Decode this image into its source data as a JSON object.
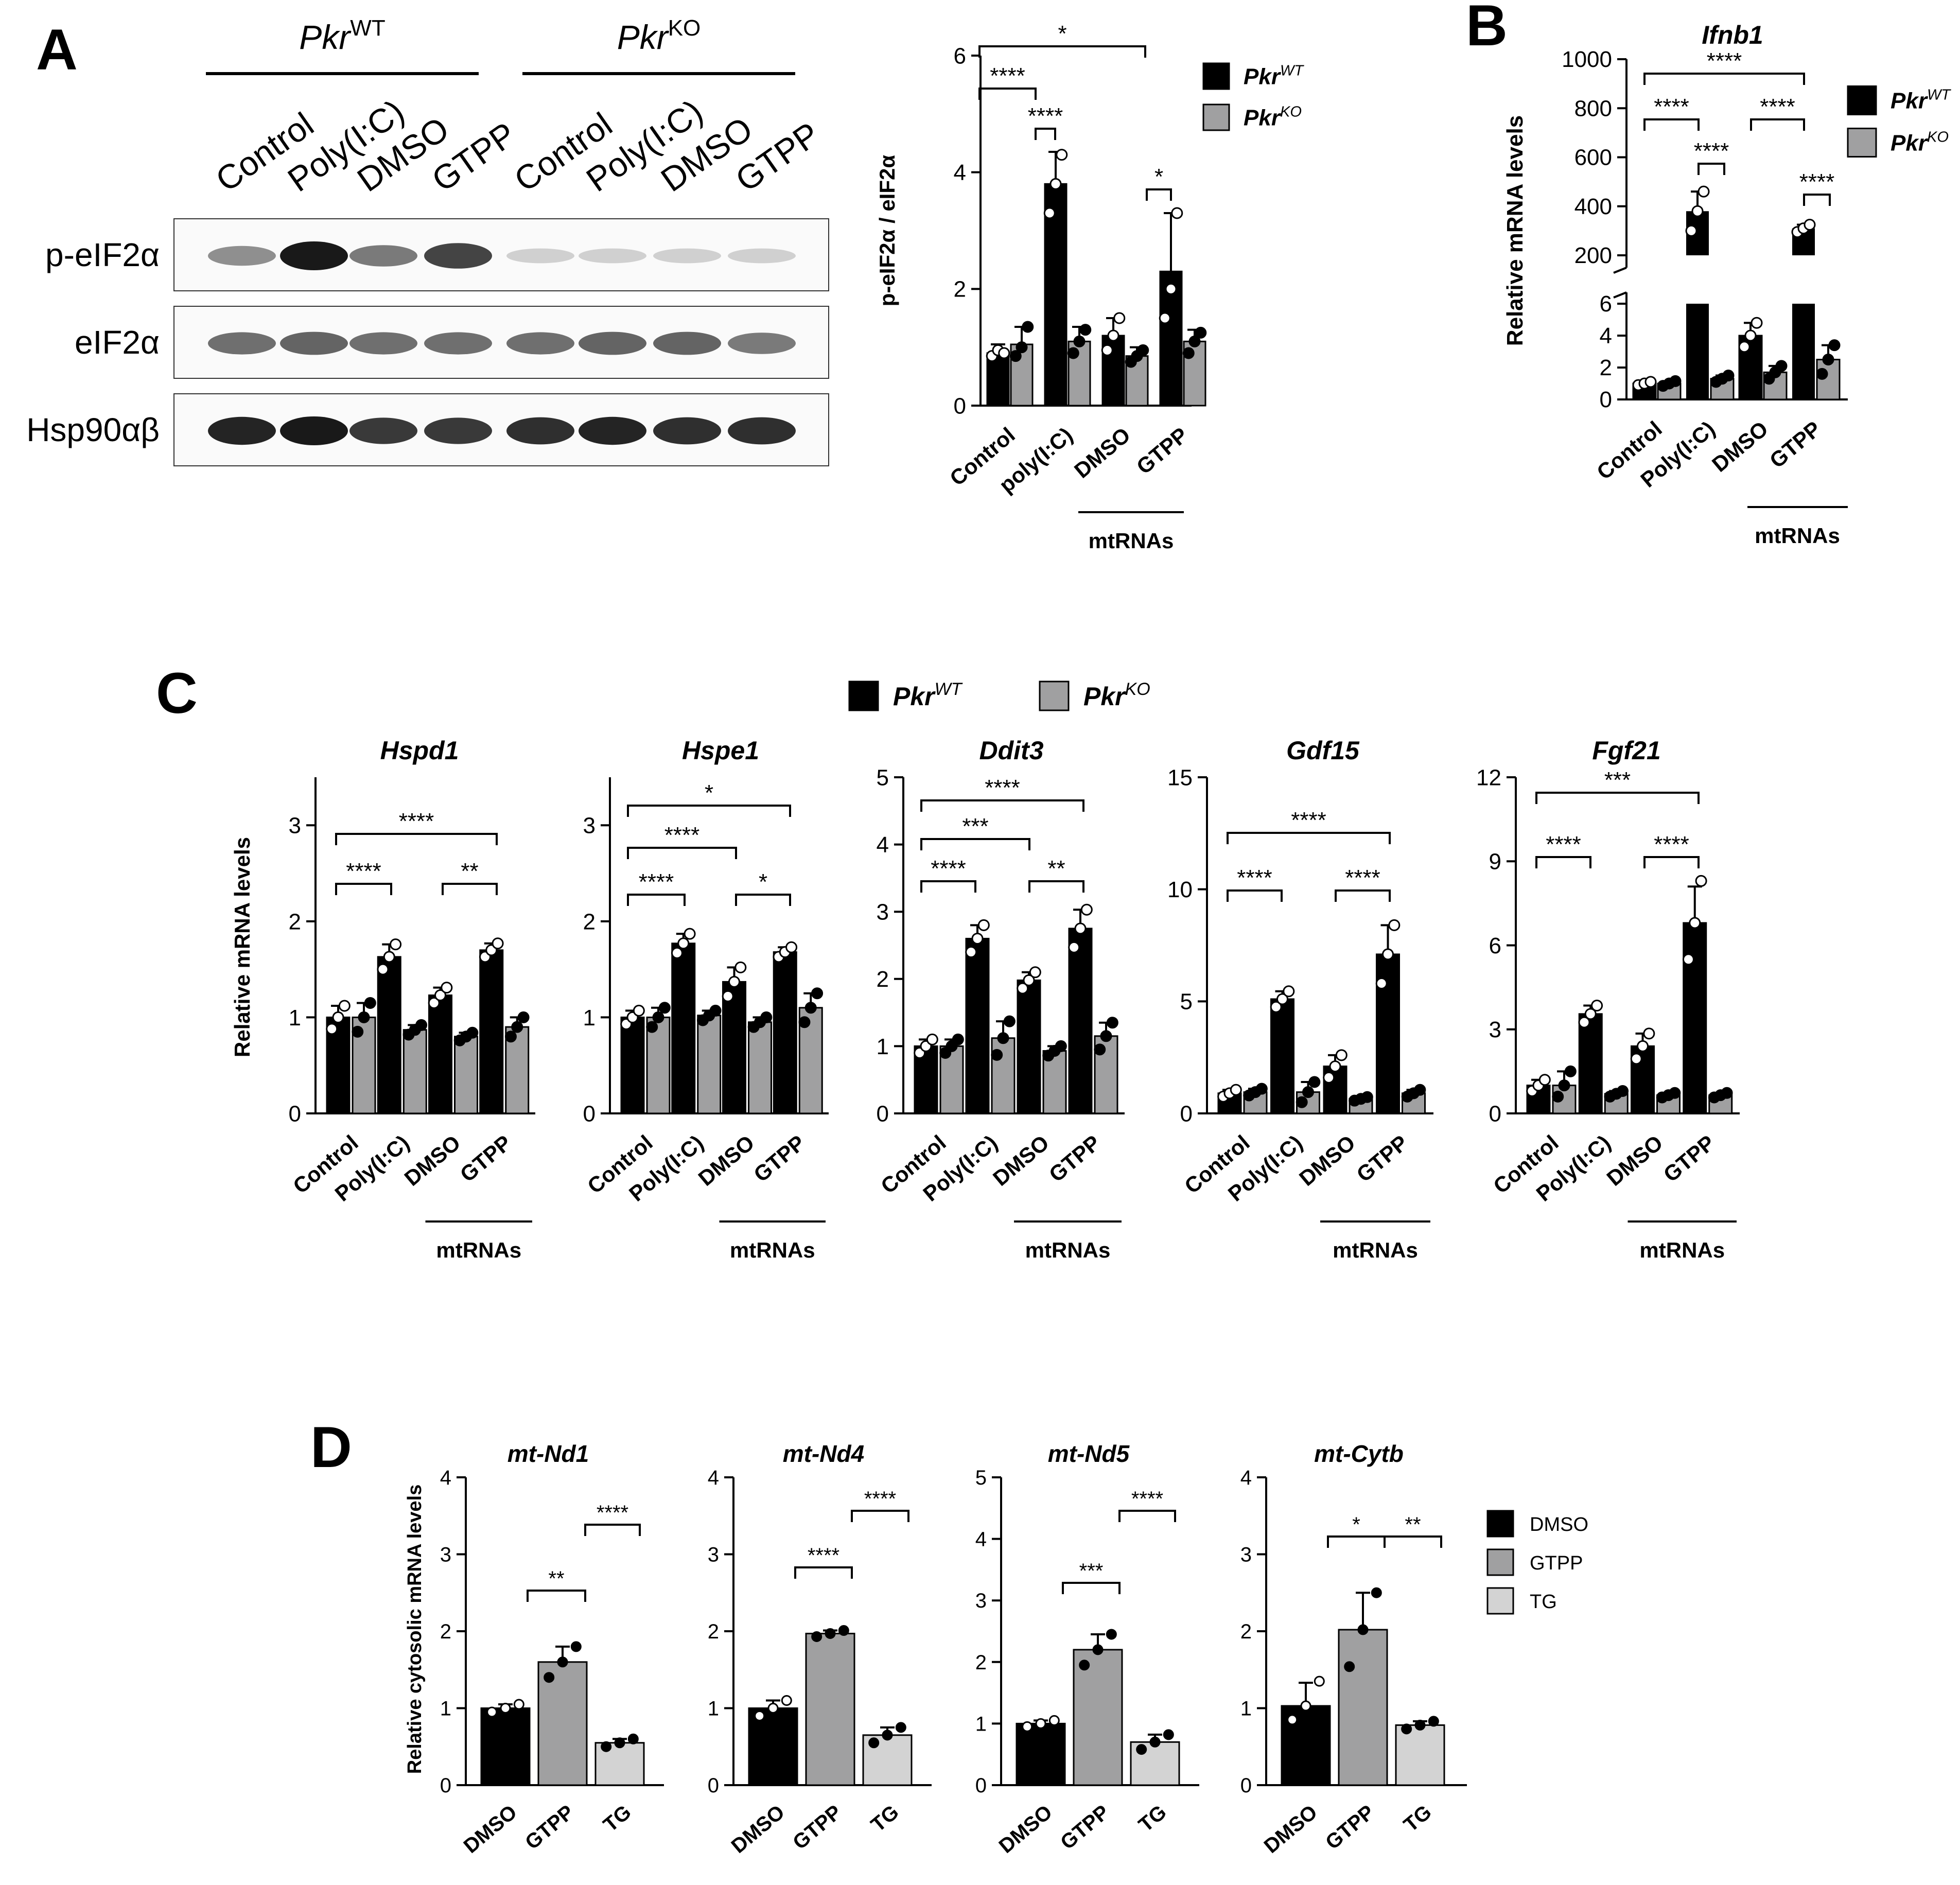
{
  "panels": {
    "A": "A",
    "B": "B",
    "C": "C",
    "D": "D"
  },
  "colors": {
    "wt": "#000000",
    "ko": "#a0a0a1",
    "dmso": "#000000",
    "gtpp": "#a0a0a1",
    "tg": "#d3d3d3"
  },
  "blot": {
    "genotypes": [
      {
        "base": "Pkr",
        "sup": "WT"
      },
      {
        "base": "Pkr",
        "sup": "KO"
      }
    ],
    "lanes": [
      "Control",
      "Poly(I:C)",
      "DMSO",
      "GTPP",
      "Control",
      "Poly(I:C)",
      "DMSO",
      "GTPP"
    ],
    "rows": [
      "p-eIF2α",
      "eIF2α",
      "Hsp90αβ"
    ],
    "intensity": [
      [
        0.45,
        1.0,
        0.55,
        0.8,
        0.15,
        0.15,
        0.15,
        0.15
      ],
      [
        0.6,
        0.65,
        0.6,
        0.6,
        0.6,
        0.65,
        0.65,
        0.55
      ],
      [
        0.95,
        1.0,
        0.85,
        0.85,
        0.9,
        0.95,
        0.9,
        0.9
      ]
    ]
  },
  "legend_genotype": [
    {
      "base": "Pkr",
      "sup": "WT",
      "color": "#000000"
    },
    {
      "base": "Pkr",
      "sup": "KO",
      "color": "#a0a0a1"
    }
  ],
  "legend_d": [
    "DMSO",
    "GTPP",
    "TG"
  ],
  "chart_data": [
    {
      "id": "A-quant",
      "type": "bar",
      "title": "",
      "ylabel": "p-eIF2α / eIF2α",
      "ylim": [
        0,
        6
      ],
      "yticks": [
        0,
        2,
        4,
        6
      ],
      "categories": [
        "Control",
        "poly(I:C)",
        "DMSO",
        "GTPP"
      ],
      "group_label": "mtRNAs",
      "series": [
        {
          "name": "PkrWT",
          "values": [
            0.9,
            3.8,
            1.2,
            2.3
          ],
          "sd": [
            0.15,
            0.55,
            0.3,
            1.0
          ],
          "points": [
            [
              0.85,
              0.95,
              0.9
            ],
            [
              3.3,
              3.8,
              4.3
            ],
            [
              0.95,
              1.2,
              1.5
            ],
            [
              1.5,
              2.0,
              3.3
            ]
          ]
        },
        {
          "name": "PkrKO",
          "values": [
            1.05,
            1.1,
            0.85,
            1.1
          ],
          "sd": [
            0.3,
            0.25,
            0.15,
            0.2
          ],
          "points": [
            [
              0.85,
              1.0,
              1.35
            ],
            [
              0.9,
              1.1,
              1.3
            ],
            [
              0.75,
              0.85,
              0.95
            ],
            [
              0.9,
              1.1,
              1.25
            ]
          ]
        }
      ],
      "significance": [
        "****",
        "****",
        "*",
        "*"
      ]
    },
    {
      "id": "B-ifnb1",
      "type": "bar",
      "title": "Ifnb1",
      "ylabel": "Relative mRNA levels",
      "broken_axis": {
        "lower_ylim": [
          0,
          6
        ],
        "lower_ticks": [
          0,
          2,
          4,
          6
        ],
        "upper_ylim": [
          200,
          1000
        ],
        "upper_ticks": [
          200,
          400,
          600,
          800,
          1000
        ]
      },
      "categories": [
        "Control",
        "Poly(I:C)",
        "DMSO",
        "GTPP"
      ],
      "group_label": "mtRNAs",
      "series": [
        {
          "name": "PkrWT",
          "values": [
            1.0,
            380,
            4.0,
            310
          ],
          "sd": [
            0.1,
            80,
            0.8,
            15
          ],
          "points": [
            [
              0.9,
              1.0,
              1.1
            ],
            [
              300,
              380,
              460
            ],
            [
              3.3,
              4.0,
              4.8
            ],
            [
              295,
              310,
              325
            ]
          ]
        },
        {
          "name": "PkrKO",
          "values": [
            1.0,
            1.3,
            1.7,
            2.5
          ],
          "sd": [
            0.15,
            0.2,
            0.4,
            0.9
          ],
          "points": [
            [
              0.85,
              1.0,
              1.15
            ],
            [
              1.1,
              1.3,
              1.5
            ],
            [
              1.3,
              1.7,
              2.1
            ],
            [
              1.6,
              2.5,
              3.4
            ]
          ]
        }
      ],
      "significance": [
        "****",
        "****",
        "****",
        "****",
        "****"
      ]
    },
    {
      "id": "C-hspd1",
      "type": "bar",
      "title": "Hspd1",
      "ylabel": "Relative mRNA levels",
      "ylim": [
        0,
        3.5
      ],
      "yticks": [
        0,
        1,
        2,
        3
      ],
      "categories": [
        "Control",
        "Poly(I:C)",
        "DMSO",
        "GTPP"
      ],
      "group_label": "mtRNAs",
      "series": [
        {
          "name": "PkrWT",
          "values": [
            1.0,
            1.63,
            1.23,
            1.7
          ],
          "sd": [
            0.12,
            0.13,
            0.08,
            0.07
          ],
          "points": [
            [
              0.88,
              1.0,
              1.12
            ],
            [
              1.5,
              1.63,
              1.76
            ],
            [
              1.15,
              1.23,
              1.31
            ],
            [
              1.63,
              1.7,
              1.77
            ]
          ]
        },
        {
          "name": "PkrKO",
          "values": [
            1.0,
            0.87,
            0.8,
            0.9
          ],
          "sd": [
            0.15,
            0.05,
            0.04,
            0.1
          ],
          "points": [
            [
              0.85,
              1.0,
              1.15
            ],
            [
              0.82,
              0.87,
              0.92
            ],
            [
              0.76,
              0.8,
              0.84
            ],
            [
              0.8,
              0.9,
              1.0
            ]
          ]
        }
      ],
      "significance": [
        "****",
        "****",
        "****",
        "**"
      ]
    },
    {
      "id": "C-hspe1",
      "type": "bar",
      "title": "Hspe1",
      "ylabel": "",
      "ylim": [
        0,
        3.5
      ],
      "yticks": [
        0,
        1,
        2,
        3
      ],
      "categories": [
        "Control",
        "Poly(I:C)",
        "DMSO",
        "GTPP"
      ],
      "group_label": "mtRNAs",
      "series": [
        {
          "name": "PkrWT",
          "values": [
            1.0,
            1.77,
            1.37,
            1.68
          ],
          "sd": [
            0.07,
            0.1,
            0.15,
            0.05
          ],
          "points": [
            [
              0.93,
              1.0,
              1.07
            ],
            [
              1.67,
              1.77,
              1.87
            ],
            [
              1.22,
              1.37,
              1.52
            ],
            [
              1.63,
              1.68,
              1.73
            ]
          ]
        },
        {
          "name": "PkrKO",
          "values": [
            1.0,
            1.02,
            0.95,
            1.1
          ],
          "sd": [
            0.1,
            0.05,
            0.05,
            0.15
          ],
          "points": [
            [
              0.9,
              1.0,
              1.1
            ],
            [
              0.97,
              1.02,
              1.07
            ],
            [
              0.9,
              0.95,
              1.0
            ],
            [
              0.95,
              1.1,
              1.25
            ]
          ]
        }
      ],
      "significance": [
        "****",
        "****",
        "*",
        "*"
      ]
    },
    {
      "id": "C-ddit3",
      "type": "bar",
      "title": "Ddit3",
      "ylabel": "",
      "ylim": [
        0,
        5
      ],
      "yticks": [
        0,
        1,
        2,
        3,
        4,
        5
      ],
      "categories": [
        "Control",
        "Poly(I:C)",
        "DMSO",
        "GTPP"
      ],
      "group_label": "mtRNAs",
      "series": [
        {
          "name": "PkrWT",
          "values": [
            1.0,
            2.6,
            1.98,
            2.75
          ],
          "sd": [
            0.1,
            0.2,
            0.12,
            0.28
          ],
          "points": [
            [
              0.9,
              1.0,
              1.1
            ],
            [
              2.4,
              2.6,
              2.8
            ],
            [
              1.86,
              1.98,
              2.1
            ],
            [
              2.47,
              2.75,
              3.03
            ]
          ]
        },
        {
          "name": "PkrKO",
          "values": [
            1.0,
            1.12,
            0.93,
            1.15
          ],
          "sd": [
            0.1,
            0.25,
            0.07,
            0.2
          ],
          "points": [
            [
              0.9,
              1.0,
              1.1
            ],
            [
              0.87,
              1.12,
              1.37
            ],
            [
              0.86,
              0.93,
              1.0
            ],
            [
              0.95,
              1.15,
              1.35
            ]
          ]
        }
      ],
      "significance": [
        "****",
        "***",
        "****",
        "**"
      ]
    },
    {
      "id": "C-gdf15",
      "type": "bar",
      "title": "Gdf15",
      "ylabel": "",
      "ylim": [
        0,
        15
      ],
      "yticks": [
        0,
        5,
        10,
        15
      ],
      "categories": [
        "Control",
        "Poly(I:C)",
        "DMSO",
        "GTPP"
      ],
      "group_label": "mtRNAs",
      "series": [
        {
          "name": "PkrWT",
          "values": [
            0.9,
            5.1,
            2.1,
            7.1
          ],
          "sd": [
            0.15,
            0.35,
            0.5,
            1.3
          ],
          "points": [
            [
              0.75,
              0.9,
              1.05
            ],
            [
              4.75,
              5.1,
              5.45
            ],
            [
              1.6,
              2.1,
              2.6
            ],
            [
              5.8,
              7.1,
              8.4
            ]
          ]
        },
        {
          "name": "PkrKO",
          "values": [
            0.95,
            0.95,
            0.65,
            0.9
          ],
          "sd": [
            0.15,
            0.45,
            0.08,
            0.15
          ],
          "points": [
            [
              0.8,
              0.95,
              1.1
            ],
            [
              0.5,
              0.95,
              1.4
            ],
            [
              0.57,
              0.65,
              0.73
            ],
            [
              0.75,
              0.9,
              1.05
            ]
          ]
        }
      ],
      "significance": [
        "****",
        "****",
        "****"
      ]
    },
    {
      "id": "C-fgf21",
      "type": "bar",
      "title": "Fgf21",
      "ylabel": "",
      "ylim": [
        0,
        12
      ],
      "yticks": [
        0,
        3,
        6,
        9,
        12
      ],
      "categories": [
        "Control",
        "Poly(I:C)",
        "DMSO",
        "GTPP"
      ],
      "group_label": "mtRNAs",
      "series": [
        {
          "name": "PkrWT",
          "values": [
            1.0,
            3.55,
            2.4,
            6.8
          ],
          "sd": [
            0.2,
            0.3,
            0.45,
            1.3
          ],
          "points": [
            [
              0.8,
              1.0,
              1.2
            ],
            [
              3.25,
              3.55,
              3.85
            ],
            [
              1.95,
              2.4,
              2.85
            ],
            [
              5.5,
              6.8,
              8.3
            ]
          ]
        },
        {
          "name": "PkrKO",
          "values": [
            1.0,
            0.7,
            0.65,
            0.65
          ],
          "sd": [
            0.5,
            0.1,
            0.08,
            0.08
          ],
          "points": [
            [
              0.6,
              1.0,
              1.5
            ],
            [
              0.6,
              0.7,
              0.8
            ],
            [
              0.57,
              0.65,
              0.73
            ],
            [
              0.57,
              0.65,
              0.73
            ]
          ]
        }
      ],
      "significance": [
        "****",
        "***",
        "****"
      ]
    },
    {
      "id": "D-nd1",
      "type": "bar",
      "title": "mt-Nd1",
      "ylabel": "Relative cytosolic mRNA levels",
      "ylim": [
        0,
        4
      ],
      "yticks": [
        0,
        1,
        2,
        3,
        4
      ],
      "categories": [
        "DMSO",
        "GTPP",
        "TG"
      ],
      "values": [
        1.0,
        1.6,
        0.55
      ],
      "sd": [
        0.05,
        0.2,
        0.05
      ],
      "points": [
        [
          0.95,
          1.0,
          1.05
        ],
        [
          1.4,
          1.6,
          1.8
        ],
        [
          0.5,
          0.55,
          0.6
        ]
      ],
      "significance": [
        "**",
        "****"
      ]
    },
    {
      "id": "D-nd4",
      "type": "bar",
      "title": "mt-Nd4",
      "ylabel": "",
      "ylim": [
        0,
        4
      ],
      "yticks": [
        0,
        1,
        2,
        3,
        4
      ],
      "categories": [
        "DMSO",
        "GTPP",
        "TG"
      ],
      "values": [
        1.0,
        1.97,
        0.65
      ],
      "sd": [
        0.1,
        0.04,
        0.1
      ],
      "points": [
        [
          0.9,
          1.0,
          1.1
        ],
        [
          1.93,
          1.97,
          2.01
        ],
        [
          0.55,
          0.65,
          0.75
        ]
      ],
      "significance": [
        "****",
        "****"
      ]
    },
    {
      "id": "D-nd5",
      "type": "bar",
      "title": "mt-Nd5",
      "ylabel": "",
      "ylim": [
        0,
        5
      ],
      "yticks": [
        0,
        1,
        2,
        3,
        4,
        5
      ],
      "categories": [
        "DMSO",
        "GTPP",
        "TG"
      ],
      "values": [
        1.0,
        2.2,
        0.7
      ],
      "sd": [
        0.05,
        0.25,
        0.12
      ],
      "points": [
        [
          0.95,
          1.0,
          1.05
        ],
        [
          1.95,
          2.2,
          2.45
        ],
        [
          0.58,
          0.7,
          0.82
        ]
      ],
      "significance": [
        "***",
        "****"
      ]
    },
    {
      "id": "D-cytb",
      "type": "bar",
      "title": "mt-Cytb",
      "ylabel": "",
      "ylim": [
        0,
        4
      ],
      "yticks": [
        0,
        1,
        2,
        3,
        4
      ],
      "categories": [
        "DMSO",
        "GTPP",
        "TG"
      ],
      "values": [
        1.03,
        2.02,
        0.78
      ],
      "sd": [
        0.3,
        0.48,
        0.05
      ],
      "points": [
        [
          0.85,
          1.03,
          1.35
        ],
        [
          1.54,
          2.02,
          2.5
        ],
        [
          0.73,
          0.78,
          0.83
        ]
      ],
      "significance": [
        "*",
        "**"
      ]
    }
  ]
}
